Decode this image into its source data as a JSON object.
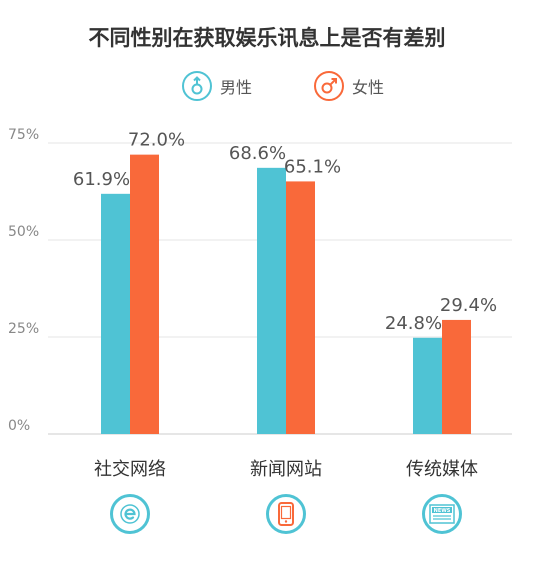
{
  "chart_data": {
    "type": "bar",
    "title": "不同性别在获取娱乐讯息上是否有差别",
    "categories": [
      "社交网络",
      "新闻网站",
      "传统媒体"
    ],
    "series": [
      {
        "name": "男性",
        "color": "#4fc3d4",
        "values": [
          61.9,
          68.6,
          24.8
        ],
        "labels": [
          "61.9%",
          "68.6%",
          "24.8%"
        ]
      },
      {
        "name": "女性",
        "color": "#f9693a",
        "values": [
          72.0,
          65.1,
          29.4
        ],
        "labels": [
          "72.0%",
          "65.1%",
          "29.4%"
        ]
      }
    ],
    "yticks": [
      {
        "value": 0,
        "label": "0%"
      },
      {
        "value": 25,
        "label": "25%"
      },
      {
        "value": 50,
        "label": "50%"
      },
      {
        "value": 75,
        "label": "75%"
      }
    ],
    "ylim": [
      0,
      75
    ],
    "grid": true,
    "legend_position": "top-center"
  },
  "legend": {
    "male_icon": "male-symbol-icon",
    "female_icon": "female-symbol-icon"
  },
  "category_icons": [
    "social-network-e-icon",
    "mobile-phone-icon",
    "newspaper-icon"
  ],
  "icon_texts": {
    "newspaper": "NEWS"
  },
  "colors": {
    "icon_border": "#4fc3d4",
    "phone_icon": "#f9693a",
    "grid": "#e4e4e4",
    "axis": "#cccccc"
  }
}
